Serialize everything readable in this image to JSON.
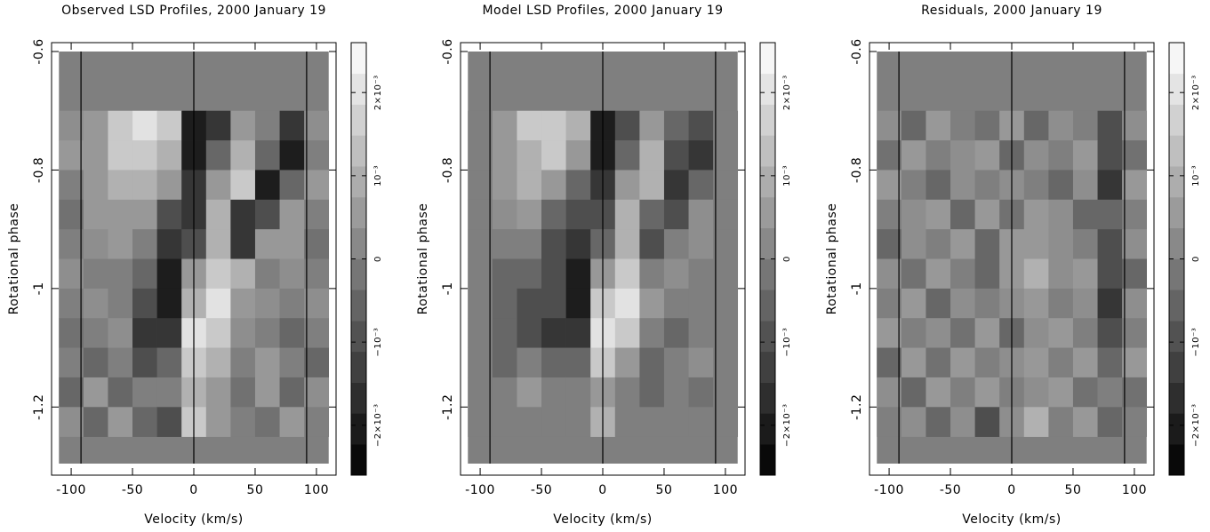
{
  "chart_data": [
    {
      "type": "heatmap",
      "title": "Observed LSD Profiles, 2000 January 19",
      "xlabel": "Velocity (km/s)",
      "ylabel": "Rotational phase",
      "xlim": [
        -116,
        116
      ],
      "ylim": [
        -1.315,
        -0.585
      ],
      "xticks": [
        -100,
        -50,
        0,
        50,
        100
      ],
      "yticks": [
        -0.6,
        -0.8,
        -1,
        -1.2
      ],
      "x_bins": [
        -110,
        -90,
        -70,
        -50,
        -30,
        -10,
        10,
        30,
        50,
        70,
        90,
        110
      ],
      "y_bins": [
        -0.7,
        -0.75,
        -0.8,
        -0.85,
        -0.9,
        -0.95,
        -1,
        -1.05,
        -1.1,
        -1.15,
        -1.2,
        -1.25
      ],
      "vlines": [
        -92,
        0,
        92
      ],
      "colormap": "gray",
      "zlim": [
        -0.0026,
        0.0026
      ],
      "zticks": [
        {
          "value": -0.002,
          "label": "−2×10⁻³"
        },
        {
          "value": -0.001,
          "label": "−10⁻³"
        },
        0,
        {
          "value": 0.001,
          "label": "10⁻³"
        },
        {
          "value": 0.002,
          "label": "2×10⁻³"
        }
      ],
      "z": [
        [
          0.0003,
          0.0005,
          0.0015,
          0.002,
          0.0015,
          -0.002,
          -0.0015,
          0.0005,
          0,
          -0.0015,
          0.0003
        ],
        [
          0.0005,
          0.0005,
          0.0015,
          0.0015,
          0.001,
          -0.002,
          -0.0005,
          0.001,
          -0.0005,
          -0.002,
          0
        ],
        [
          0,
          0.0005,
          0.001,
          0.001,
          0.0005,
          -0.0015,
          0.0005,
          0.0015,
          -0.002,
          -0.0005,
          0.0005
        ],
        [
          -0.0003,
          0.0005,
          0.0005,
          0.0005,
          -0.001,
          -0.0015,
          0.001,
          -0.0015,
          -0.001,
          0.0005,
          0
        ],
        [
          0,
          0.0003,
          0.0005,
          0,
          -0.0015,
          -0.001,
          0.001,
          -0.0015,
          0.0005,
          0.0005,
          -0.0003
        ],
        [
          0.0003,
          0,
          0,
          -0.0005,
          -0.002,
          0.0005,
          0.0015,
          0.001,
          0,
          0.0003,
          0
        ],
        [
          0,
          0.0003,
          0,
          -0.001,
          -0.002,
          0.001,
          0.002,
          0.0005,
          0.0003,
          0,
          0.0003
        ],
        [
          -0.0003,
          0,
          0.0003,
          -0.0015,
          -0.0015,
          0.002,
          0.0015,
          0.0003,
          0,
          -0.0005,
          0
        ],
        [
          0,
          -0.0005,
          0,
          -0.001,
          -0.0005,
          0.0015,
          0.001,
          0,
          0.0005,
          0,
          -0.0005
        ],
        [
          -0.0005,
          0.0005,
          -0.0005,
          0,
          0,
          0.001,
          0.0005,
          -0.0003,
          0.0005,
          -0.0005,
          0.0003
        ],
        [
          0.0003,
          -0.0005,
          0.0005,
          -0.0005,
          -0.001,
          0.0015,
          0.0005,
          0,
          -0.0003,
          0.0005,
          0
        ]
      ]
    },
    {
      "type": "heatmap",
      "title": "Model LSD Profiles, 2000 January 19",
      "xlabel": "Velocity (km/s)",
      "ylabel": "Rotational phase",
      "xlim": [
        -116,
        116
      ],
      "ylim": [
        -1.315,
        -0.585
      ],
      "xticks": [
        -100,
        -50,
        0,
        50,
        100
      ],
      "yticks": [
        -0.6,
        -0.8,
        -1,
        -1.2
      ],
      "x_bins": [
        -110,
        -90,
        -70,
        -50,
        -30,
        -10,
        10,
        30,
        50,
        70,
        90,
        110
      ],
      "y_bins": [
        -0.7,
        -0.75,
        -0.8,
        -0.85,
        -0.9,
        -0.95,
        -1,
        -1.05,
        -1.1,
        -1.15,
        -1.2,
        -1.25
      ],
      "vlines": [
        -92,
        0,
        92
      ],
      "colormap": "gray",
      "zlim": [
        -0.0026,
        0.0026
      ],
      "zticks": [
        {
          "value": -0.002,
          "label": "−2×10⁻³"
        },
        {
          "value": -0.001,
          "label": "−10⁻³"
        },
        0,
        {
          "value": 0.001,
          "label": "10⁻³"
        },
        {
          "value": 0.002,
          "label": "2×10⁻³"
        }
      ],
      "z": [
        [
          0,
          0.0005,
          0.0015,
          0.0015,
          0.001,
          -0.002,
          -0.001,
          0.0005,
          -0.0005,
          -0.001,
          0
        ],
        [
          0,
          0.0005,
          0.001,
          0.0015,
          0.0005,
          -0.002,
          -0.0005,
          0.001,
          -0.001,
          -0.0015,
          0
        ],
        [
          0,
          0.0005,
          0.001,
          0.0005,
          -0.0005,
          -0.0015,
          0.0005,
          0.001,
          -0.0015,
          -0.0005,
          0
        ],
        [
          0,
          0.0003,
          0.0005,
          -0.0005,
          -0.001,
          -0.001,
          0.001,
          -0.0005,
          -0.001,
          0.0003,
          0
        ],
        [
          0,
          0,
          0,
          -0.001,
          -0.0015,
          -0.0005,
          0.001,
          -0.001,
          0,
          0.0003,
          0
        ],
        [
          0,
          -0.0005,
          -0.0005,
          -0.001,
          -0.002,
          0.0005,
          0.0015,
          0,
          0.0003,
          0,
          0
        ],
        [
          0,
          -0.0005,
          -0.001,
          -0.001,
          -0.002,
          0.0015,
          0.002,
          0.0005,
          0,
          0,
          0
        ],
        [
          0,
          -0.0005,
          -0.001,
          -0.0015,
          -0.0015,
          0.002,
          0.0015,
          0,
          -0.0005,
          0,
          0
        ],
        [
          0,
          -0.0005,
          0,
          -0.0005,
          -0.0005,
          0.0015,
          0.0005,
          -0.0005,
          0,
          0.0003,
          0
        ],
        [
          0,
          0,
          0.0005,
          0,
          0,
          0.0005,
          0,
          -0.0005,
          0,
          -0.0003,
          0
        ],
        [
          0,
          0,
          0,
          0,
          0,
          0.001,
          0,
          0,
          0,
          0,
          0
        ]
      ]
    },
    {
      "type": "heatmap",
      "title": "Residuals, 2000 January 19",
      "xlabel": "Velocity (km/s)",
      "ylabel": "Rotational phase",
      "xlim": [
        -116,
        116
      ],
      "ylim": [
        -1.315,
        -0.585
      ],
      "xticks": [
        -100,
        -50,
        0,
        50,
        100
      ],
      "yticks": [
        -0.6,
        -0.8,
        -1,
        -1.2
      ],
      "x_bins": [
        -110,
        -90,
        -70,
        -50,
        -30,
        -10,
        10,
        30,
        50,
        70,
        90,
        110
      ],
      "y_bins": [
        -0.7,
        -0.75,
        -0.8,
        -0.85,
        -0.9,
        -0.95,
        -1,
        -1.05,
        -1.1,
        -1.15,
        -1.2,
        -1.25
      ],
      "vlines": [
        -92,
        0,
        92
      ],
      "colormap": "gray",
      "zlim": [
        -0.0026,
        0.0026
      ],
      "zticks": [
        {
          "value": -0.002,
          "label": "−2×10⁻³"
        },
        {
          "value": -0.001,
          "label": "−10⁻³"
        },
        0,
        {
          "value": 0.001,
          "label": "10⁻³"
        },
        {
          "value": 0.002,
          "label": "2×10⁻³"
        }
      ],
      "z": [
        [
          0.0003,
          -0.0005,
          0.0005,
          0,
          -0.0003,
          0.0005,
          -0.0005,
          0.0003,
          0,
          -0.001,
          0.0003
        ],
        [
          -0.0003,
          0.0005,
          0,
          0.0003,
          0.0005,
          -0.0005,
          0.0003,
          0,
          0.0005,
          -0.001,
          -0.0003
        ],
        [
          0.0005,
          0,
          -0.0005,
          0.0003,
          0,
          0.0003,
          0,
          -0.0005,
          0.0003,
          -0.0015,
          0.0005
        ],
        [
          0,
          0.0003,
          0.0005,
          -0.0005,
          0.0005,
          -0.0003,
          0.0005,
          0.0003,
          -0.0005,
          -0.0005,
          0
        ],
        [
          -0.0005,
          0.0003,
          0,
          0.0005,
          -0.0005,
          0.0005,
          0.0005,
          0.0003,
          0,
          -0.001,
          0.0003
        ],
        [
          0.0003,
          -0.0003,
          0.0005,
          0,
          -0.0005,
          0.0005,
          0.001,
          0.0003,
          0.0005,
          -0.001,
          -0.0005
        ],
        [
          0,
          0.0005,
          -0.0005,
          0.0003,
          0,
          0.0003,
          0.0005,
          0,
          0.0003,
          -0.0015,
          0.0003
        ],
        [
          0.0005,
          0,
          0.0003,
          -0.0003,
          0.0005,
          -0.0005,
          0.0003,
          0.0005,
          0,
          -0.001,
          0
        ],
        [
          -0.0005,
          0.0005,
          -0.0003,
          0.0005,
          0,
          0.0003,
          0.0005,
          0,
          0.0005,
          -0.0005,
          0.0005
        ],
        [
          0.0003,
          -0.0005,
          0.0005,
          0,
          0.0005,
          0,
          0.0003,
          0.0005,
          -0.0003,
          0,
          -0.0003
        ],
        [
          0,
          0.0003,
          -0.0005,
          0.0003,
          -0.001,
          0.0003,
          0.001,
          0,
          0.0005,
          -0.0005,
          0
        ]
      ]
    }
  ]
}
